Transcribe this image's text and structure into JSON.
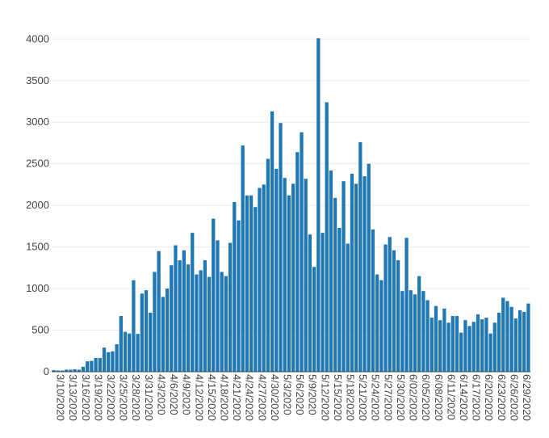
{
  "chart_data": {
    "type": "bar",
    "title": "",
    "xlabel": "",
    "ylabel": "",
    "ylim": [
      0,
      4100
    ],
    "y_ticks": [
      0,
      500,
      1000,
      1500,
      2000,
      2500,
      3000,
      3500,
      4000
    ],
    "grid": true,
    "bar_color": "#1f77b4",
    "categories": [
      "3/10/2020",
      "3/11/2020",
      "3/12/2020",
      "3/13/2020",
      "3/14/2020",
      "3/15/2020",
      "3/16/2020",
      "3/17/2020",
      "3/18/2020",
      "3/19/2020",
      "3/20/2020",
      "3/21/2020",
      "3/22/2020",
      "3/23/2020",
      "3/24/2020",
      "3/25/2020",
      "3/26/2020",
      "3/27/2020",
      "3/28/2020",
      "3/29/2020",
      "3/30/2020",
      "3/31/2020",
      "4/1/2020",
      "4/2/2020",
      "4/3/2020",
      "4/4/2020",
      "4/5/2020",
      "4/6/2020",
      "4/7/2020",
      "4/8/2020",
      "4/9/2020",
      "4/10/2020",
      "4/11/2020",
      "4/12/2020",
      "4/13/2020",
      "4/14/2020",
      "4/15/2020",
      "4/16/2020",
      "4/17/2020",
      "4/18/2020",
      "4/19/2020",
      "4/20/2020",
      "4/21/2020",
      "4/22/2020",
      "4/23/2020",
      "4/24/2020",
      "4/25/2020",
      "4/26/2020",
      "4/27/2020",
      "4/28/2020",
      "4/29/2020",
      "4/30/2020",
      "5/1/2020",
      "5/2/2020",
      "5/3/2020",
      "5/4/2020",
      "5/5/2020",
      "5/6/2020",
      "5/7/2020",
      "5/8/2020",
      "5/9/2020",
      "5/10/2020",
      "5/11/2020",
      "5/12/2020",
      "5/13/2020",
      "5/14/2020",
      "5/15/2020",
      "5/16/2020",
      "5/17/2020",
      "5/18/2020",
      "5/19/2020",
      "5/20/2020",
      "5/21/2020",
      "5/22/2020",
      "5/23/2020",
      "5/24/2020",
      "5/25/2020",
      "5/26/2020",
      "5/27/2020",
      "5/28/2020",
      "5/29/2020",
      "5/30/2020",
      "5/31/2020",
      "6/1/2020",
      "6/02/2020",
      "6/03/2020",
      "6/04/2020",
      "6/05/2020",
      "6/06/2020",
      "6/07/2020",
      "6/08/2020",
      "6/09/2020",
      "6/10/2020",
      "6/11/2020",
      "6/12/2020",
      "6/13/2020",
      "6/14/2020",
      "6/15/2020",
      "6/16/2020",
      "6/17/2020",
      "6/18/2020",
      "6/19/2020",
      "6/20/2020",
      "6/21/2020",
      "6/22/2020",
      "6/23/2020",
      "6/24/2020",
      "6/25/2020",
      "6/26/2020",
      "6/27/2020",
      "6/28/2020",
      "6/29/2020",
      "6/30/2020",
      "7/1/2020"
    ],
    "x_tick_labels": [
      "3/10/2020",
      "3/13/2020",
      "3/16/2020",
      "3/19/2020",
      "3/22/2020",
      "3/25/2020",
      "3/28/2020",
      "3/31/2020",
      "4/3/2020",
      "4/6/2020",
      "4/9/2020",
      "4/12/2020",
      "4/15/2020",
      "4/18/2020",
      "4/21/2020",
      "4/24/2020",
      "4/27/2020",
      "4/30/2020",
      "5/3/2020",
      "5/6/2020",
      "5/9/2020",
      "5/12/2020",
      "5/15/2020",
      "5/18/2020",
      "5/21/2020",
      "5/24/2020",
      "5/27/2020",
      "5/30/2020",
      "6/02/2020",
      "6/05/2020",
      "6/08/2020",
      "6/11/2020",
      "6/14/2020",
      "6/17/2020",
      "6/20/2020",
      "6/23/2020",
      "6/26/2020",
      "6/29/2020"
    ],
    "values": [
      20,
      15,
      15,
      25,
      25,
      30,
      25,
      60,
      125,
      130,
      165,
      165,
      290,
      235,
      245,
      330,
      670,
      480,
      460,
      1100,
      455,
      940,
      980,
      710,
      1200,
      1450,
      900,
      1000,
      1280,
      1520,
      1340,
      1460,
      1290,
      1670,
      1170,
      1220,
      1340,
      1140,
      1840,
      1580,
      1200,
      1150,
      1550,
      2040,
      1820,
      2720,
      2120,
      2120,
      1980,
      2210,
      2250,
      2560,
      3130,
      2440,
      2990,
      2330,
      2120,
      2260,
      2640,
      2880,
      2320,
      1650,
      1260,
      4010,
      1670,
      3240,
      2420,
      2090,
      1730,
      2290,
      1540,
      2380,
      2260,
      2760,
      2350,
      2500,
      1710,
      1170,
      1100,
      1530,
      1620,
      1460,
      1340,
      970,
      1610,
      980,
      930,
      1150,
      970,
      860,
      650,
      790,
      620,
      760,
      590,
      670,
      670,
      470,
      620,
      550,
      600,
      690,
      630,
      650,
      460,
      590,
      710,
      890,
      850,
      780,
      640,
      740,
      720,
      820
    ]
  }
}
